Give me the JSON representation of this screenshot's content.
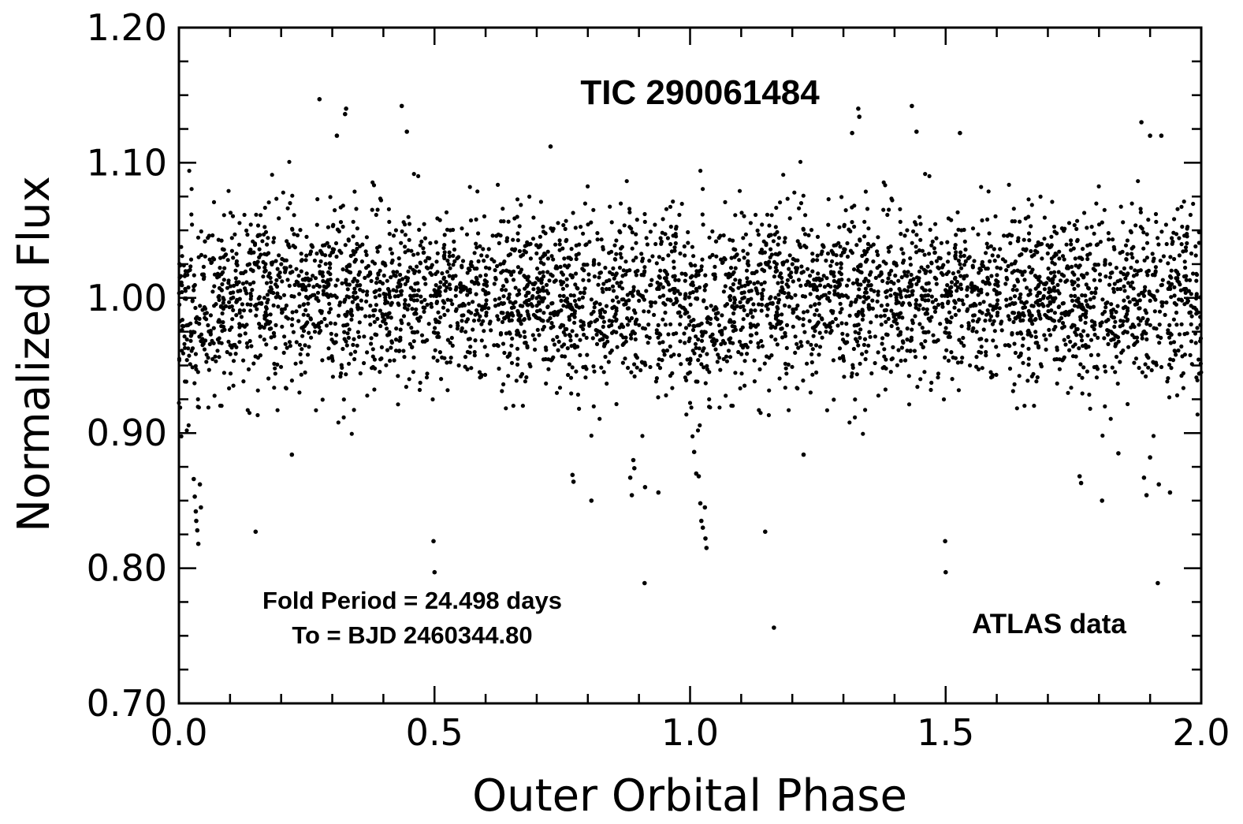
{
  "chart_data": {
    "type": "scatter",
    "title": "TIC 290061484",
    "xlabel": "Outer Orbital Phase",
    "ylabel": "Normalized Flux",
    "xlim": [
      0.0,
      2.0
    ],
    "ylim": [
      0.7,
      1.2
    ],
    "x_ticks": [
      "0.0",
      "0.5",
      "1.0",
      "1.5",
      "2.0"
    ],
    "y_ticks": [
      "0.70",
      "0.80",
      "0.90",
      "1.00",
      "1.10",
      "1.20"
    ],
    "annotations": {
      "fold_period": "Fold Period = 24.498 days",
      "epoch": "To = BJD 2460344.80",
      "source": "ATLAS data"
    },
    "grid": false,
    "legend": "none",
    "marker_color": "#000000",
    "outliers": [
      {
        "x": 0.029,
        "y": 0.866
      },
      {
        "x": 0.031,
        "y": 0.853
      },
      {
        "x": 0.033,
        "y": 0.842
      },
      {
        "x": 0.034,
        "y": 0.835
      },
      {
        "x": 0.036,
        "y": 0.828
      },
      {
        "x": 0.038,
        "y": 0.818
      },
      {
        "x": 0.041,
        "y": 0.862
      },
      {
        "x": 0.043,
        "y": 0.845
      },
      {
        "x": 0.15,
        "y": 0.827
      },
      {
        "x": 0.221,
        "y": 0.884
      },
      {
        "x": 0.275,
        "y": 1.147
      },
      {
        "x": 0.325,
        "y": 1.136
      },
      {
        "x": 0.327,
        "y": 1.14
      },
      {
        "x": 0.309,
        "y": 1.12
      },
      {
        "x": 0.436,
        "y": 1.142
      },
      {
        "x": 0.446,
        "y": 1.123
      },
      {
        "x": 0.498,
        "y": 0.82
      },
      {
        "x": 0.5,
        "y": 0.797
      },
      {
        "x": 0.727,
        "y": 1.112
      },
      {
        "x": 0.77,
        "y": 0.869
      },
      {
        "x": 0.772,
        "y": 0.864
      },
      {
        "x": 0.807,
        "y": 0.85
      },
      {
        "x": 0.889,
        "y": 0.88
      },
      {
        "x": 0.891,
        "y": 0.874
      },
      {
        "x": 0.883,
        "y": 0.867
      },
      {
        "x": 0.886,
        "y": 0.854
      },
      {
        "x": 0.911,
        "y": 0.789
      },
      {
        "x": 0.912,
        "y": 0.86
      },
      {
        "x": 0.938,
        "y": 0.856
      },
      {
        "x": 1.008,
        "y": 0.886
      },
      {
        "x": 1.012,
        "y": 0.87
      },
      {
        "x": 1.017,
        "y": 0.868
      },
      {
        "x": 1.02,
        "y": 0.848
      },
      {
        "x": 1.022,
        "y": 0.835
      },
      {
        "x": 1.025,
        "y": 0.83
      },
      {
        "x": 1.03,
        "y": 0.822
      },
      {
        "x": 1.032,
        "y": 0.815
      },
      {
        "x": 1.029,
        "y": 0.845
      },
      {
        "x": 1.147,
        "y": 0.827
      },
      {
        "x": 1.164,
        "y": 0.756
      },
      {
        "x": 1.222,
        "y": 0.884
      },
      {
        "x": 1.329,
        "y": 1.14
      },
      {
        "x": 1.331,
        "y": 1.134
      },
      {
        "x": 1.317,
        "y": 1.122
      },
      {
        "x": 1.434,
        "y": 1.142
      },
      {
        "x": 1.443,
        "y": 1.123
      },
      {
        "x": 1.499,
        "y": 0.82
      },
      {
        "x": 1.5,
        "y": 0.797
      },
      {
        "x": 1.528,
        "y": 1.122
      },
      {
        "x": 1.762,
        "y": 0.868
      },
      {
        "x": 1.765,
        "y": 0.863
      },
      {
        "x": 1.806,
        "y": 0.85
      },
      {
        "x": 1.838,
        "y": 0.885
      },
      {
        "x": 1.883,
        "y": 1.13
      },
      {
        "x": 1.888,
        "y": 0.867
      },
      {
        "x": 1.893,
        "y": 0.854
      },
      {
        "x": 1.9,
        "y": 0.882
      },
      {
        "x": 1.915,
        "y": 0.789
      },
      {
        "x": 1.917,
        "y": 0.862
      },
      {
        "x": 1.939,
        "y": 0.856
      },
      {
        "x": 1.9,
        "y": 1.12
      },
      {
        "x": 1.922,
        "y": 1.12
      }
    ],
    "bulk_distribution": {
      "center": 1.0,
      "points_per_half_phase": 1050,
      "scatter_envelope": [
        0.9,
        1.1
      ],
      "dip_phases": [
        0.0,
        0.03,
        1.0,
        1.03,
        2.0
      ],
      "dip_depth": 0.06
    }
  }
}
